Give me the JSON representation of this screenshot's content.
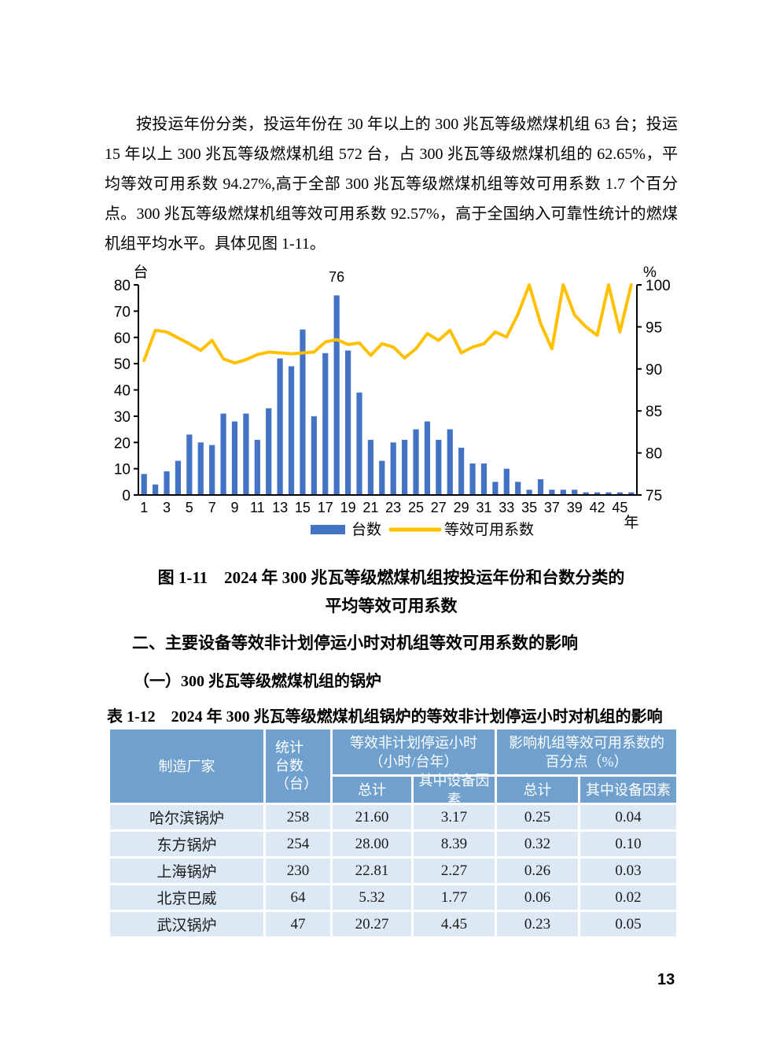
{
  "page": {
    "number": "13"
  },
  "paragraph": {
    "text": "按投运年份分类，投运年份在 30 年以上的 300 兆瓦等级燃煤机组 63 台；投运 15 年以上 300 兆瓦等级燃煤机组 572 台，占 300 兆瓦等级燃煤机组的 62.65%，平均等效可用系数 94.27%,高于全部 300 兆瓦等级燃煤机组等效可用系数 1.7 个百分点。300 兆瓦等级燃煤机组等效可用系数 92.57%，高于全国纳入可靠性统计的燃煤机组平均水平。具体见图 1-11。"
  },
  "figure_caption": {
    "line1": "图 1-11　2024 年 300 兆瓦等级燃煤机组按投运年份和台数分类的",
    "line2": "平均等效可用系数"
  },
  "section_heading": "二、主要设备等效非计划停运小时对机组等效可用系数的影响",
  "subsection_heading": "（一）300 兆瓦等级燃煤机组的锅炉",
  "table": {
    "title": "表 1-12　2024 年 300 兆瓦等级燃煤机组锅炉的等效非计划停运小时对机组的影响",
    "header_bg": "#6FA0CE",
    "row_bg": "#DCE9F5",
    "headers": {
      "manufacturer": "制造厂家",
      "unit_count_lines": [
        "统计",
        "台数",
        "（台）"
      ],
      "group1_lines": [
        "等效非计划停运小时",
        "（小时/台年）"
      ],
      "group2_lines": [
        "影响机组等效可用系数的",
        "百分点（%）"
      ],
      "subcols": [
        "总计",
        "其中设备因素",
        "总计",
        "其中设备因素"
      ]
    },
    "rows": [
      [
        "哈尔滨锅炉",
        "258",
        "21.60",
        "3.17",
        "0.25",
        "0.04"
      ],
      [
        "东方锅炉",
        "254",
        "28.00",
        "8.39",
        "0.32",
        "0.10"
      ],
      [
        "上海锅炉",
        "230",
        "22.81",
        "2.27",
        "0.26",
        "0.03"
      ],
      [
        "北京巴威",
        "64",
        "5.32",
        "1.77",
        "0.06",
        "0.02"
      ],
      [
        "武汉锅炉",
        "47",
        "20.27",
        "4.45",
        "0.23",
        "0.05"
      ]
    ]
  },
  "chart_data": {
    "type": "bar",
    "subtype": "bar+line dual axis",
    "title": "",
    "x_label": "年",
    "label_interval": 2,
    "left_axis": {
      "unit": "台",
      "min": 0,
      "max": 80,
      "ticks": [
        0,
        10,
        20,
        30,
        40,
        50,
        60,
        70,
        80
      ]
    },
    "right_axis": {
      "unit": "%",
      "min": 75,
      "max": 100,
      "ticks": [
        75,
        80,
        85,
        90,
        95,
        100
      ]
    },
    "categories": [
      "1",
      "2",
      "3",
      "4",
      "5",
      "6",
      "7",
      "8",
      "9",
      "10",
      "11",
      "12",
      "13",
      "14",
      "15",
      "16",
      "17",
      "18",
      "19",
      "20",
      "21",
      "22",
      "23",
      "24",
      "25",
      "26",
      "27",
      "28",
      "29",
      "30",
      "31",
      "32",
      "33",
      "34",
      "35",
      "36",
      "37",
      "38",
      "39",
      "40",
      "42",
      "43",
      "45",
      "46"
    ],
    "x_tick_labels": [
      "1",
      "3",
      "5",
      "7",
      "9",
      "11",
      "13",
      "15",
      "17",
      "19",
      "21",
      "23",
      "25",
      "27",
      "29",
      "31",
      "33",
      "35",
      "37",
      "39",
      "42",
      "45"
    ],
    "series": [
      {
        "name": "台数",
        "type": "bar",
        "axis": "left",
        "color": "#4472C4",
        "values": [
          8,
          4,
          9,
          13,
          23,
          20,
          19,
          31,
          28,
          31,
          21,
          33,
          52,
          49,
          63,
          30,
          54,
          76,
          55,
          39,
          21,
          13,
          20,
          21,
          25,
          28,
          21,
          25,
          18,
          12,
          12,
          5,
          10,
          5,
          2,
          6,
          2,
          2,
          2,
          1,
          1,
          1,
          1,
          1
        ]
      },
      {
        "name": "等效可用系数",
        "type": "line",
        "axis": "right",
        "color": "#FFC000",
        "values": [
          91.0,
          94.6,
          94.4,
          93.7,
          93.0,
          92.2,
          93.4,
          91.2,
          90.7,
          91.1,
          91.7,
          92.0,
          91.9,
          91.8,
          91.9,
          92.0,
          93.2,
          93.5,
          92.9,
          93.1,
          91.6,
          93.0,
          92.6,
          91.3,
          92.4,
          94.2,
          93.4,
          94.6,
          91.9,
          92.6,
          93.0,
          94.4,
          93.8,
          96.5,
          100.0,
          95.4,
          92.4,
          100.0,
          96.4,
          95.0,
          94.0,
          100.0,
          94.4,
          100.0
        ]
      }
    ],
    "annotations": [
      {
        "index": 17,
        "text": "76"
      }
    ],
    "legend": {
      "position": "bottom",
      "entries": [
        "台数",
        "等效可用系数"
      ]
    },
    "grid": false
  }
}
